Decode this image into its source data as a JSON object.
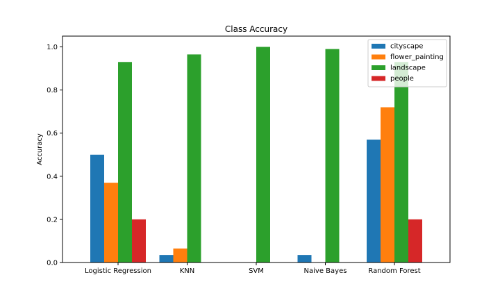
{
  "chart_data": {
    "type": "bar",
    "title": "Class Accuracy",
    "xlabel": "",
    "ylabel": "Accuracy",
    "ylim": [
      0,
      1.05
    ],
    "yticks": [
      "0.0",
      "0.2",
      "0.4",
      "0.6",
      "0.8",
      "1.0"
    ],
    "grid": false,
    "legend_position": "top-right",
    "categories": [
      "Logistic Regression",
      "KNN",
      "SVM",
      "Naive Bayes",
      "Random Forest"
    ],
    "series": [
      {
        "name": "cityscape",
        "color": "#1f77b4",
        "values": [
          0.5,
          0.035,
          0.0,
          0.035,
          0.57
        ]
      },
      {
        "name": "flower_painting",
        "color": "#ff7f0e",
        "values": [
          0.37,
          0.065,
          0.0,
          0.0,
          0.72
        ]
      },
      {
        "name": "landscape",
        "color": "#2ca02c",
        "values": [
          0.93,
          0.965,
          1.0,
          0.99,
          0.93
        ]
      },
      {
        "name": "people",
        "color": "#d62728",
        "values": [
          0.2,
          0.0,
          0.0,
          0.0,
          0.2
        ]
      }
    ]
  }
}
